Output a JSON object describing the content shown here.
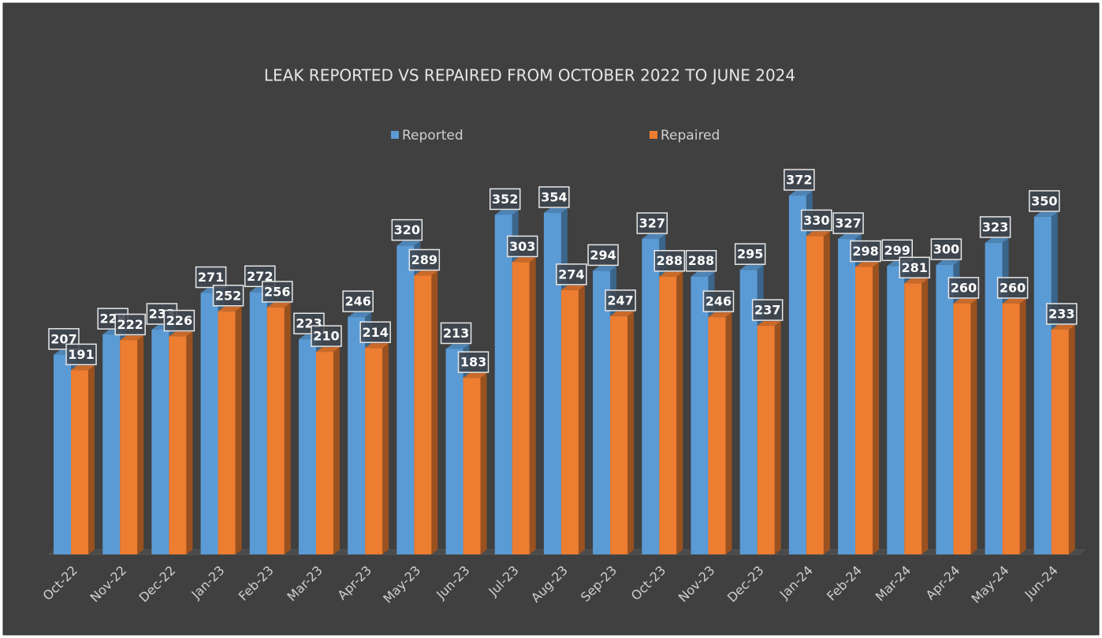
{
  "chart_data": {
    "type": "bar3d",
    "title": "LEAK REPORTED VS REPAIRED FROM OCTOBER 2022 TO JUNE 2024",
    "categories": [
      "Oct-22",
      "Nov-22",
      "Dec-22",
      "Jan-23",
      "Feb-23",
      "Mar-23",
      "Apr-23",
      "May-23",
      "Jun-23",
      "Jul-23",
      "Aug-23",
      "Sep-23",
      "Oct-23",
      "Nov-23",
      "Dec-23",
      "Jan-24",
      "Feb-24",
      "Mar-24",
      "Apr-24",
      "May-24",
      "Jun-24"
    ],
    "series": [
      {
        "name": "Reported",
        "color": "#5b9bd5",
        "values": [
          207,
          228,
          233,
          271,
          272,
          223,
          246,
          320,
          213,
          352,
          354,
          294,
          327,
          288,
          295,
          372,
          327,
          299,
          300,
          323,
          350
        ]
      },
      {
        "name": "Repaired",
        "color": "#ed7d31",
        "values": [
          191,
          222,
          226,
          252,
          256,
          210,
          214,
          289,
          183,
          303,
          274,
          247,
          288,
          246,
          237,
          330,
          298,
          281,
          260,
          260,
          233
        ]
      }
    ],
    "legend": "top"
  }
}
